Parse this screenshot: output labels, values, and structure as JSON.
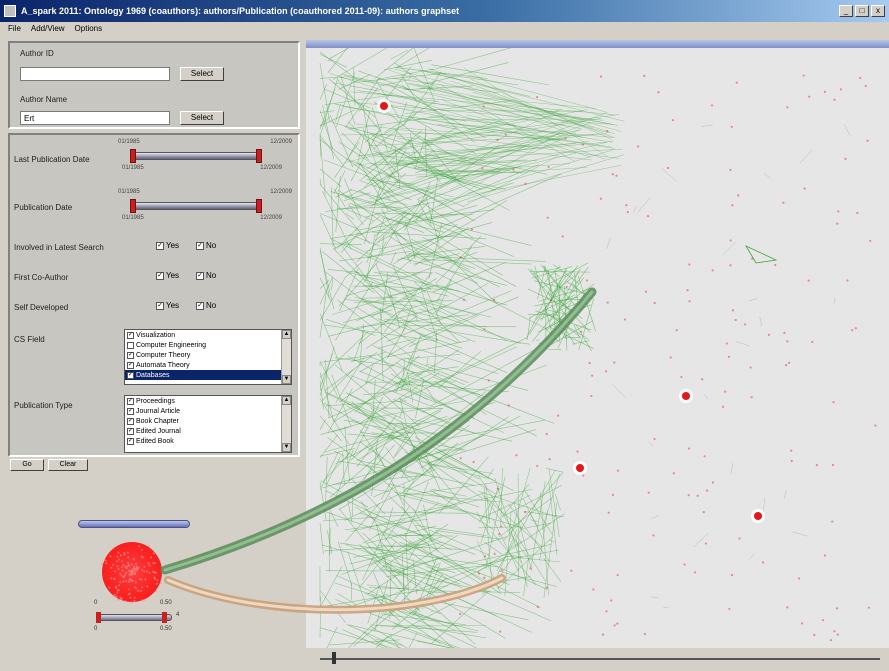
{
  "window": {
    "title": "A_spark 2011: Ontology 1969 (coauthors): authors/Publication (coauthored 2011-09): authors graphset",
    "minimize_glyph": "_",
    "maximize_glyph": "□",
    "close_glyph": "x"
  },
  "menu": {
    "items": [
      "File",
      "Add/View",
      "Options"
    ]
  },
  "search": {
    "author_id_label": "Author ID",
    "author_id_value": "",
    "author_id_button": "Select",
    "author_name_label": "Author Name",
    "author_name_value": "Ert",
    "author_name_button": "Select"
  },
  "filters": {
    "last_publication": {
      "label": "Last Publication Date",
      "top_left": "01/1985",
      "top_right": "12/2009",
      "bottom_left": "01/1985",
      "bottom_right": "12/2009",
      "range_fraction": [
        0.0,
        1.0
      ]
    },
    "publication_date": {
      "label": "Publication Date",
      "top_left": "01/1985",
      "top_right": "12/2009",
      "bottom_left": "01/1985",
      "bottom_right": "12/2009",
      "range_fraction": [
        0.0,
        1.0
      ]
    },
    "involved_in_search": {
      "label": "Involved in Latest Search",
      "yes": "Yes",
      "no": "No",
      "yes_checked": true,
      "no_checked": true
    },
    "first_coauthor": {
      "label": "First Co-Author",
      "yes": "Yes",
      "no": "No",
      "yes_checked": true,
      "no_checked": true
    },
    "self_developed": {
      "label": "Self Developed",
      "yes": "Yes",
      "no": "No",
      "yes_checked": true,
      "no_checked": true
    },
    "cs_field": {
      "label": "CS Field",
      "items": [
        {
          "label": "Visualization",
          "checked": true,
          "selected": false
        },
        {
          "label": "Computer Engineering",
          "checked": false,
          "selected": false
        },
        {
          "label": "Computer Theory",
          "checked": true,
          "selected": false
        },
        {
          "label": "Automata Theory",
          "checked": true,
          "selected": false
        },
        {
          "label": "Databases",
          "checked": true,
          "selected": true
        }
      ]
    },
    "publication_type": {
      "label": "Publication Type",
      "items": [
        {
          "label": "Proceedings",
          "checked": true
        },
        {
          "label": "Journal Article",
          "checked": true
        },
        {
          "label": "Book Chapter",
          "checked": true
        },
        {
          "label": "Edited Journal",
          "checked": true
        },
        {
          "label": "Edited Book",
          "checked": true
        }
      ]
    }
  },
  "actions": {
    "go_label": "Go",
    "clear_label": "Clear"
  },
  "overview": {
    "slider_left_top": "0",
    "slider_right_top": "0.50",
    "slider_left_bottom": "0",
    "slider_right_bottom": "0.50",
    "slider_extra": "4"
  },
  "colors": {
    "green_edge": "#3aa63a",
    "red_node": "#e01a1a",
    "canvas_bg": "#e6e6e6",
    "titlebar": "#0a246a"
  }
}
